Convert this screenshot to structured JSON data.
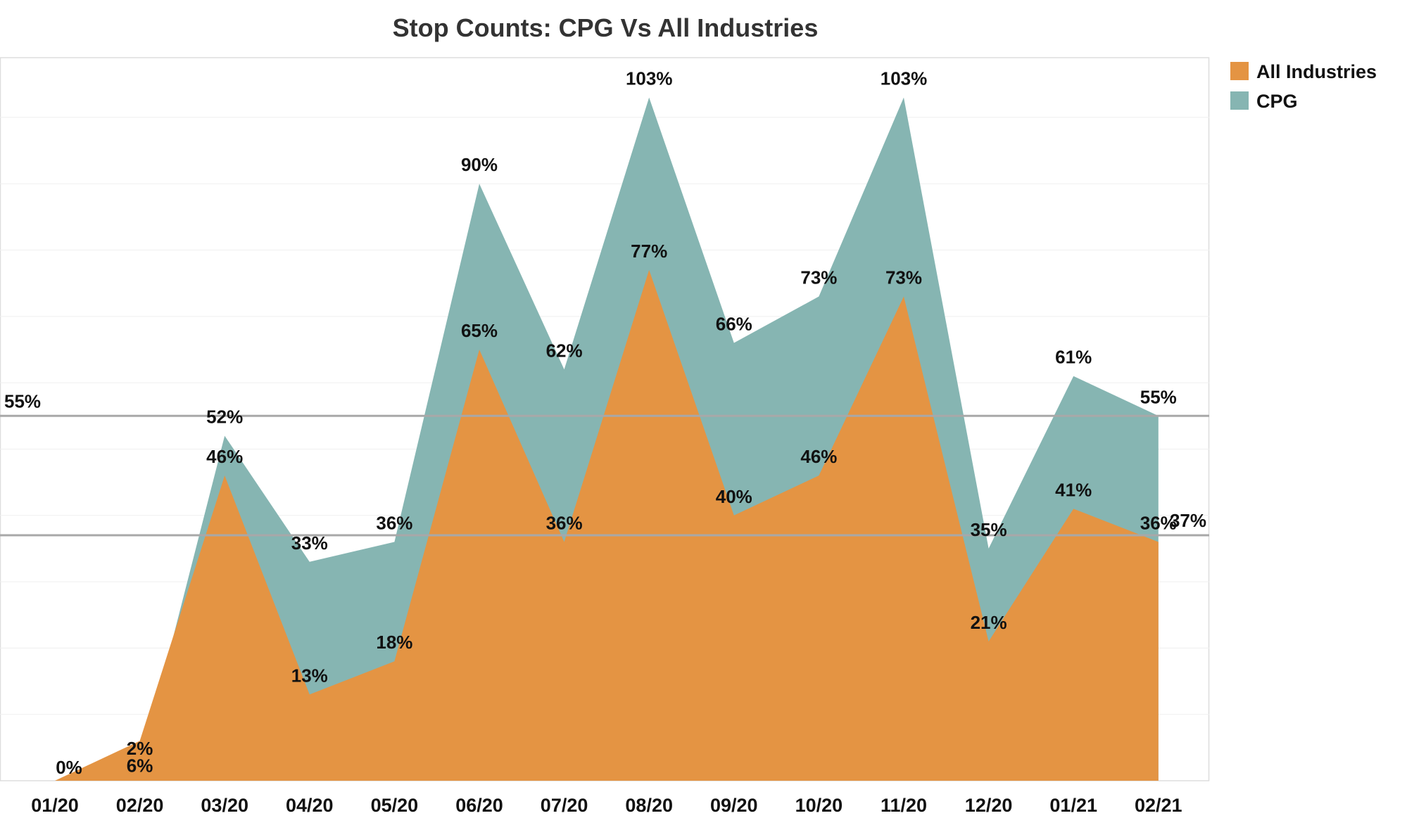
{
  "chart_data": {
    "type": "area",
    "title": "Stop Counts: CPG Vs All Industries",
    "xlabel": "",
    "ylabel": "",
    "categories": [
      "01/20",
      "02/20",
      "03/20",
      "04/20",
      "05/20",
      "06/20",
      "07/20",
      "08/20",
      "09/20",
      "10/20",
      "11/20",
      "12/20",
      "01/21",
      "02/21"
    ],
    "ylim": [
      0,
      109
    ],
    "grid": true,
    "legend_position": "top-right",
    "series": [
      {
        "name": "All Industries",
        "color": "#E49443",
        "values": [
          0,
          6,
          46,
          13,
          18,
          65,
          36,
          77,
          40,
          46,
          73,
          21,
          41,
          36
        ],
        "labels": [
          "0%",
          "6%",
          "46%",
          "13%",
          "18%",
          "65%",
          "36%",
          "77%",
          "40%",
          "46%",
          "73%",
          "21%",
          "41%",
          "36%"
        ]
      },
      {
        "name": "CPG",
        "color": "#86B5B2",
        "values": [
          0,
          2,
          52,
          33,
          36,
          90,
          62,
          103,
          66,
          73,
          103,
          35,
          61,
          55
        ],
        "labels": [
          "0%",
          "2%",
          "52%",
          "33%",
          "36%",
          "90%",
          "62%",
          "103%",
          "66%",
          "73%",
          "103%",
          "35%",
          "61%",
          "55%"
        ]
      }
    ],
    "reference_lines": [
      {
        "value": 55,
        "label": "55%",
        "color": "#A8A8A8"
      },
      {
        "value": 37,
        "label": "37%",
        "color": "#A8A8A8"
      }
    ]
  }
}
